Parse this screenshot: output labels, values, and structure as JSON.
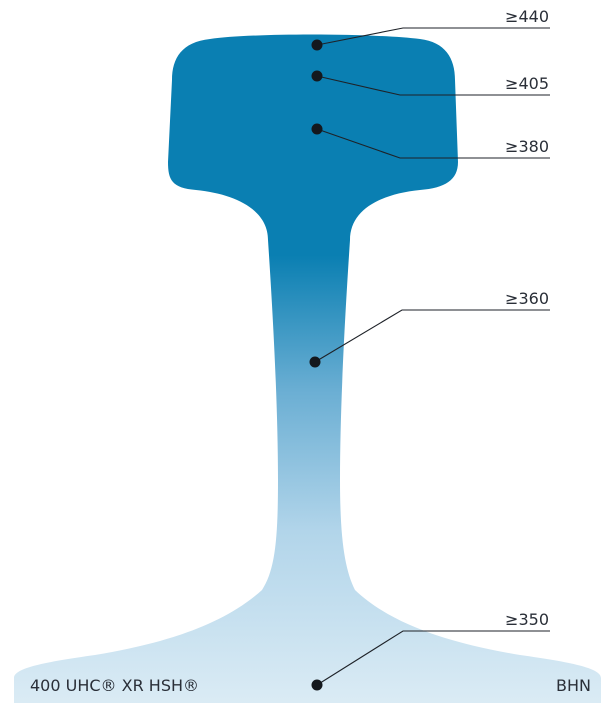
{
  "colors": {
    "head": "#0a7fb2",
    "foot": "#dcecf5",
    "text": "#2a2f38",
    "line": "#1e2228"
  },
  "product_label": "400 UHC® XR HSH®",
  "unit_label": "BHN",
  "hardness_points": [
    {
      "value": "≥440"
    },
    {
      "value": "≥405"
    },
    {
      "value": "≥380"
    },
    {
      "value": "≥360"
    },
    {
      "value": "≥350"
    }
  ]
}
